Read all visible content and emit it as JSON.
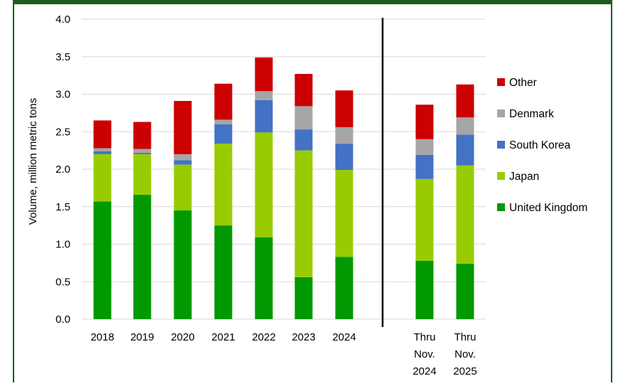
{
  "chart_data": {
    "type": "bar",
    "stacked": true,
    "title": "",
    "xlabel": "",
    "ylabel": "Volume, million metric tons",
    "ylim": [
      0,
      4.0
    ],
    "yticks": [
      "0.0",
      "0.5",
      "1.0",
      "1.5",
      "2.0",
      "2.5",
      "3.0",
      "3.5",
      "4.0"
    ],
    "grid": true,
    "legend_position": "right",
    "categories": [
      [
        "2018"
      ],
      [
        "2019"
      ],
      [
        "2020"
      ],
      [
        "2021"
      ],
      [
        "2022"
      ],
      [
        "2023"
      ],
      [
        "2024"
      ],
      [
        "Thru",
        "Nov.",
        "2024"
      ],
      [
        "Thru",
        "Nov.",
        "2025"
      ]
    ],
    "series": [
      {
        "name": "United Kingdom",
        "color": "#009900",
        "values": [
          1.57,
          1.66,
          1.45,
          1.25,
          1.09,
          0.56,
          0.83,
          0.78,
          0.74
        ]
      },
      {
        "name": "Japan",
        "color": "#99cc00",
        "values": [
          0.63,
          0.54,
          0.61,
          1.09,
          1.4,
          1.69,
          1.16,
          1.09,
          1.31
        ]
      },
      {
        "name": "South Korea",
        "color": "#4472c4",
        "values": [
          0.04,
          0.02,
          0.06,
          0.26,
          0.43,
          0.28,
          0.35,
          0.32,
          0.41
        ]
      },
      {
        "name": "Denmark",
        "color": "#a6a6a6",
        "values": [
          0.04,
          0.05,
          0.08,
          0.06,
          0.12,
          0.31,
          0.22,
          0.21,
          0.23
        ]
      },
      {
        "name": "Other",
        "color": "#cc0000",
        "values": [
          0.37,
          0.36,
          0.71,
          0.48,
          0.45,
          0.43,
          0.49,
          0.46,
          0.44
        ]
      }
    ],
    "colors": {
      "header_bar": "#1e5c1e",
      "frame": "#1e5c1e",
      "divider": "#000000",
      "grid": "#d9d9d9"
    }
  }
}
